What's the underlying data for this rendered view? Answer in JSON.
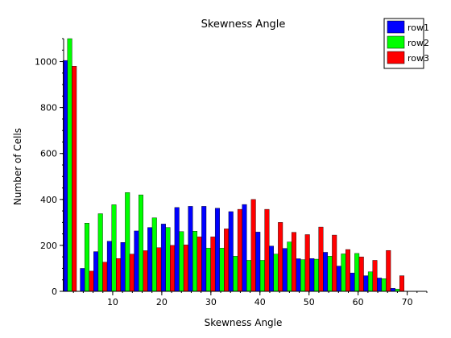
{
  "chart_data": {
    "type": "bar",
    "title": "Skewness Angle",
    "xlabel": "Skewness Angle",
    "ylabel": "Number of Cells",
    "xlim": [
      0,
      74
    ],
    "ylim": [
      0,
      1100
    ],
    "x_ticks": [
      "10",
      "20",
      "30",
      "40",
      "50",
      "60",
      "70"
    ],
    "y_ticks": [
      "0",
      "200",
      "400",
      "600",
      "800",
      "1000"
    ],
    "grid": false,
    "legend_position": "top-right",
    "bin_centers": [
      1.25,
      4.75,
      7.5,
      10.25,
      13,
      15.75,
      18.5,
      21.25,
      24,
      26.75,
      29.5,
      32.25,
      35,
      37.75,
      40.5,
      43.25,
      46,
      48.75,
      51.5,
      54.25,
      57,
      59.75,
      62.5,
      65.25,
      68,
      70.75,
      73.5
    ],
    "series": [
      {
        "name": "row1",
        "color": "#0000ff",
        "values": [
          1005,
          100,
          173,
          218,
          213,
          263,
          278,
          293,
          365,
          370,
          370,
          362,
          347,
          378,
          258,
          197,
          187,
          142,
          143,
          170,
          110,
          80,
          68,
          58,
          13,
          0,
          0
        ]
      },
      {
        "name": "row2",
        "color": "#00ff00",
        "values": [
          1100,
          297,
          338,
          377,
          430,
          420,
          320,
          278,
          260,
          262,
          188,
          188,
          153,
          135,
          135,
          162,
          215,
          138,
          140,
          153,
          163,
          165,
          85,
          55,
          10,
          0,
          0
        ]
      },
      {
        "name": "row3",
        "color": "#ff0000",
        "values": [
          980,
          88,
          127,
          143,
          162,
          177,
          190,
          200,
          202,
          237,
          237,
          272,
          357,
          400,
          357,
          300,
          257,
          247,
          280,
          245,
          182,
          150,
          135,
          178,
          68,
          0,
          0
        ]
      }
    ]
  }
}
